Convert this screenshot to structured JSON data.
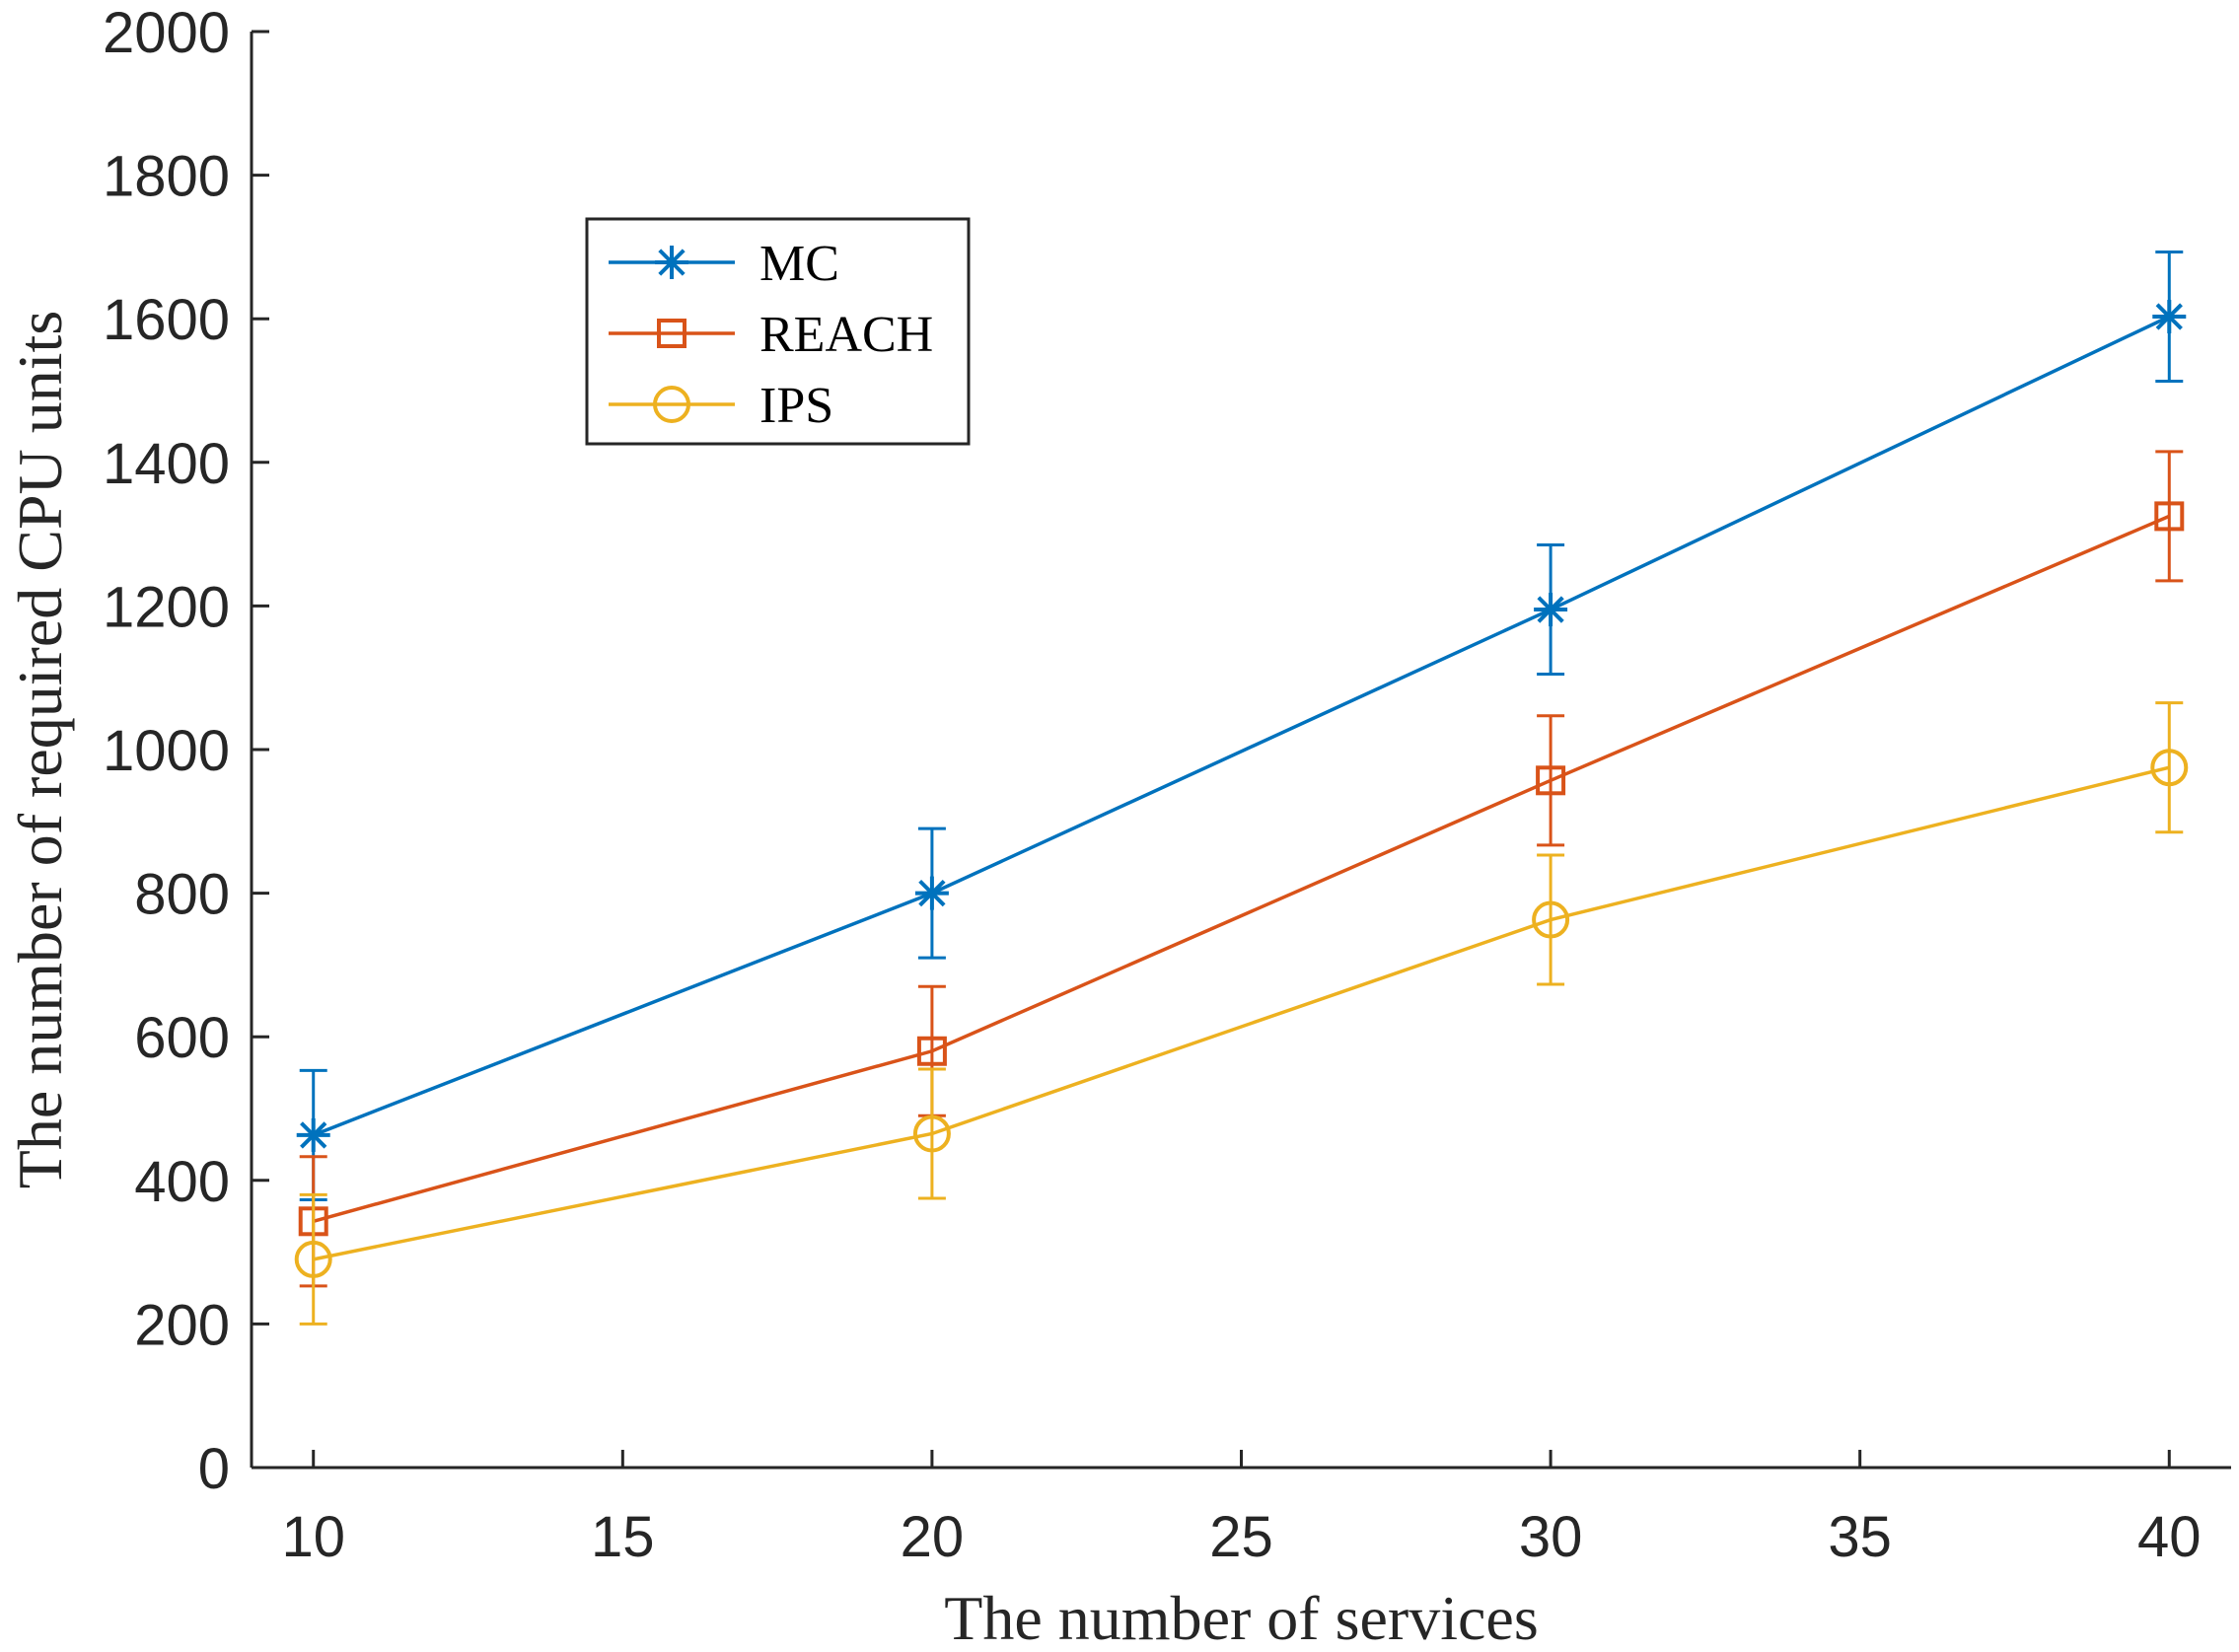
{
  "chart_data": {
    "type": "line",
    "title": "",
    "xlabel": "The number of services",
    "ylabel": "The number of required CPU units",
    "xlim": [
      9,
      41
    ],
    "ylim": [
      0,
      2000
    ],
    "xticks": [
      10,
      15,
      20,
      25,
      30,
      35,
      40
    ],
    "yticks": [
      0,
      200,
      400,
      600,
      800,
      1000,
      1200,
      1400,
      1600,
      1800,
      2000
    ],
    "x": [
      10,
      20,
      30,
      40
    ],
    "error_bar_halfwidth": 90,
    "legend_position": "upper-left",
    "series": [
      {
        "name": "MC",
        "color": "#0072BD",
        "marker": "asterisk",
        "values": [
          463,
          800,
          1195,
          1603
        ]
      },
      {
        "name": "REACH",
        "color": "#D95319",
        "marker": "square",
        "values": [
          343,
          580,
          957,
          1325
        ]
      },
      {
        "name": "IPS",
        "color": "#EDB120",
        "marker": "circle",
        "values": [
          290,
          465,
          763,
          975
        ]
      }
    ]
  }
}
